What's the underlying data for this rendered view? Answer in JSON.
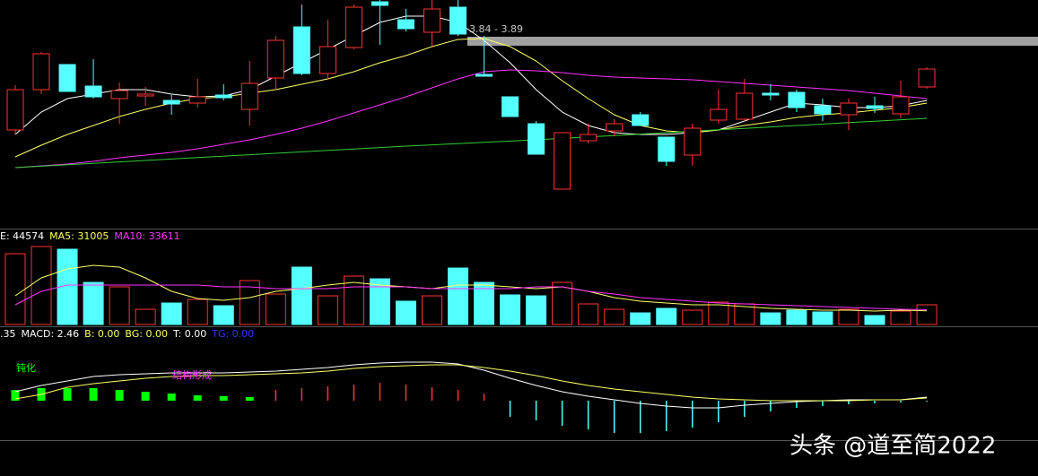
{
  "chart_data": [
    {
      "type": "candlestick",
      "ylim": [
        2.82,
        4.095
      ],
      "up_color": "#ff3232",
      "down_color": "#54ffff",
      "open": [
        3.37,
        3.595,
        3.735,
        3.615,
        3.545,
        3.56,
        3.535,
        3.52,
        3.565,
        3.485,
        3.66,
        3.945,
        3.685,
        3.83,
        4.085,
        3.985,
        3.915,
        4.055,
        3.68,
        3.555,
        3.405,
        3.04,
        3.31,
        3.365,
        3.455,
        3.33,
        3.23,
        3.425,
        3.43,
        3.575,
        3.58,
        3.505,
        3.455,
        3.505,
        3.46,
        3.61
      ],
      "high": [
        3.62,
        3.805,
        3.735,
        3.765,
        3.635,
        3.61,
        3.565,
        3.655,
        3.625,
        3.755,
        3.895,
        4.07,
        3.985,
        4.07,
        4.095,
        4.045,
        4.095,
        4.095,
        3.895,
        3.555,
        3.42,
        3.355,
        3.405,
        3.43,
        3.47,
        3.33,
        3.405,
        3.595,
        3.655,
        3.625,
        3.595,
        3.545,
        3.545,
        3.555,
        3.645,
        3.72
      ],
      "low": [
        3.345,
        3.57,
        3.585,
        3.545,
        3.405,
        3.505,
        3.455,
        3.495,
        3.535,
        3.395,
        3.595,
        3.675,
        3.655,
        3.82,
        3.845,
        3.92,
        3.835,
        3.895,
        3.67,
        3.445,
        3.235,
        3.04,
        3.295,
        3.335,
        3.395,
        3.17,
        3.17,
        3.405,
        3.42,
        3.535,
        3.47,
        3.42,
        3.37,
        3.465,
        3.435,
        3.6
      ],
      "close": [
        3.595,
        3.795,
        3.585,
        3.555,
        3.59,
        3.57,
        3.515,
        3.555,
        3.55,
        3.63,
        3.87,
        3.685,
        3.835,
        4.055,
        4.065,
        3.935,
        4.045,
        3.905,
        3.67,
        3.445,
        3.235,
        3.355,
        3.345,
        3.405,
        3.395,
        3.195,
        3.38,
        3.485,
        3.575,
        3.565,
        3.495,
        3.46,
        3.52,
        3.49,
        3.555,
        3.71
      ],
      "lines": [
        {
          "color": "#ffffff",
          "values": [
            3.345,
            3.47,
            3.545,
            3.57,
            3.595,
            3.595,
            3.57,
            3.555,
            3.56,
            3.595,
            3.67,
            3.745,
            3.82,
            3.895,
            3.97,
            4.005,
            4.005,
            3.97,
            3.87,
            3.745,
            3.595,
            3.47,
            3.395,
            3.355,
            3.345,
            3.345,
            3.355,
            3.37,
            3.42,
            3.47,
            3.52,
            3.51,
            3.495,
            3.495,
            3.505,
            3.535
          ]
        },
        {
          "color": "#ffff66",
          "values": [
            3.22,
            3.285,
            3.345,
            3.395,
            3.445,
            3.485,
            3.52,
            3.545,
            3.555,
            3.575,
            3.595,
            3.625,
            3.655,
            3.695,
            3.745,
            3.785,
            3.835,
            3.875,
            3.88,
            3.835,
            3.755,
            3.645,
            3.545,
            3.455,
            3.395,
            3.365,
            3.355,
            3.37,
            3.395,
            3.415,
            3.44,
            3.455,
            3.465,
            3.48,
            3.495,
            3.52
          ]
        },
        {
          "color": "#ff33ff",
          "values": [
            3.16,
            3.17,
            3.18,
            3.195,
            3.215,
            3.23,
            3.245,
            3.265,
            3.29,
            3.315,
            3.345,
            3.38,
            3.42,
            3.465,
            3.51,
            3.555,
            3.605,
            3.655,
            3.695,
            3.705,
            3.7,
            3.69,
            3.675,
            3.665,
            3.66,
            3.655,
            3.65,
            3.64,
            3.63,
            3.62,
            3.61,
            3.6,
            3.59,
            3.575,
            3.56,
            3.545
          ]
        },
        {
          "color": "#33cc33",
          "values": [
            3.16,
            3.168,
            3.176,
            3.184,
            3.192,
            3.2,
            3.208,
            3.216,
            3.224,
            3.232,
            3.24,
            3.248,
            3.256,
            3.264,
            3.272,
            3.28,
            3.287,
            3.294,
            3.301,
            3.308,
            3.315,
            3.323,
            3.331,
            3.339,
            3.347,
            3.355,
            3.363,
            3.371,
            3.379,
            3.387,
            3.395,
            3.403,
            3.411,
            3.419,
            3.427,
            3.435
          ]
        }
      ],
      "annotation": {
        "label": "3.84 - 3.89",
        "low": 3.84,
        "high": 3.89,
        "color": "#a0a0a0"
      }
    },
    {
      "type": "volume",
      "ylim": [
        0,
        214800
      ],
      "up_color": "#ff3232",
      "legend": [
        {
          "text": "E: 44574",
          "color": "#ffffff"
        },
        {
          "text": "MA5: 31005",
          "color": "#ffff66"
        },
        {
          "text": "MA10: 33611",
          "color": "#ff33ff"
        }
      ],
      "values": [
        160000,
        176300,
        170200,
        95200,
        85100,
        34400,
        48600,
        56700,
        42500,
        99300,
        68900,
        129700,
        64800,
        109400,
        103300,
        52700,
        64800,
        127600,
        95200,
        66900,
        64800,
        95200,
        46600,
        34400,
        26300,
        36500,
        32400,
        50700,
        46600,
        26300,
        32400,
        28400,
        34400,
        20300,
        30400,
        44574
      ],
      "colors": [
        "#ff3232",
        "#ff3232",
        "#54ffff",
        "#54ffff",
        "#ff3232",
        "#ff3232",
        "#54ffff",
        "#ff3232",
        "#54ffff",
        "#ff3232",
        "#ff3232",
        "#54ffff",
        "#ff3232",
        "#ff3232",
        "#54ffff",
        "#54ffff",
        "#ff3232",
        "#54ffff",
        "#54ffff",
        "#54ffff",
        "#54ffff",
        "#ff3232",
        "#ff3232",
        "#ff3232",
        "#54ffff",
        "#54ffff",
        "#ff3232",
        "#ff3232",
        "#ff3232",
        "#54ffff",
        "#54ffff",
        "#54ffff",
        "#ff3232",
        "#54ffff",
        "#ff3232",
        "#ff3232"
      ],
      "lines": [
        {
          "color": "#ffff66",
          "values": [
            64800,
            105400,
            125600,
            133700,
            129700,
            105400,
            75000,
            58800,
            54700,
            60800,
            75000,
            81000,
            89100,
            95200,
            89100,
            85100,
            81000,
            89100,
            89100,
            85100,
            81000,
            85100,
            75000,
            60800,
            52700,
            48600,
            44600,
            44600,
            40500,
            36500,
            34400,
            32400,
            32400,
            30400,
            32400,
            31005
          ]
        },
        {
          "color": "#ff33ff",
          "values": [
            44600,
            75000,
            89100,
            89100,
            89100,
            89100,
            89100,
            89100,
            85100,
            85100,
            81000,
            81000,
            81000,
            85100,
            85100,
            85100,
            81000,
            81000,
            81000,
            81000,
            85100,
            85100,
            75000,
            68900,
            60800,
            56700,
            52700,
            48600,
            46600,
            44600,
            42500,
            40500,
            38500,
            36500,
            34400,
            33611
          ]
        }
      ]
    },
    {
      "type": "macd",
      "ylim": [
        -0.45,
        0.82
      ],
      "wide_color": "#00ff00",
      "legend": [
        {
          "text": ".35",
          "color": "#ffffff"
        },
        {
          "text": "MACD: 2.46",
          "color": "#ffffff"
        },
        {
          "text": "B: 0.00",
          "color": "#ffff66"
        },
        {
          "text": "BG: 0.00",
          "color": "#ffff66"
        },
        {
          "text": "T: 0.00",
          "color": "#ffffff"
        },
        {
          "text": "TG: 0.00",
          "color": "#3333ff"
        }
      ],
      "values": [
        0.12,
        0.14,
        0.14,
        0.14,
        0.12,
        0.1,
        0.08,
        0.06,
        0.05,
        0.04,
        0.12,
        0.14,
        0.16,
        0.18,
        0.2,
        0.18,
        0.15,
        0.12,
        0.08,
        -0.18,
        -0.22,
        -0.28,
        -0.32,
        -0.36,
        -0.36,
        -0.34,
        -0.3,
        -0.24,
        -0.18,
        -0.12,
        -0.08,
        -0.06,
        -0.04,
        -0.03,
        -0.02,
        -0.01
      ],
      "colors": [
        "#00ff00",
        "#00ff00",
        "#00ff00",
        "#00ff00",
        "#00ff00",
        "#00ff00",
        "#00ff00",
        "#00ff00",
        "#00ff00",
        "#00ff00",
        "#ff3232",
        "#ff3232",
        "#ff3232",
        "#ff3232",
        "#ff3232",
        "#ff3232",
        "#ff3232",
        "#ff3232",
        "#ff3232",
        "#54ffff",
        "#54ffff",
        "#54ffff",
        "#54ffff",
        "#54ffff",
        "#54ffff",
        "#54ffff",
        "#54ffff",
        "#54ffff",
        "#54ffff",
        "#54ffff",
        "#54ffff",
        "#54ffff",
        "#54ffff",
        "#54ffff",
        "#54ffff",
        "#54ffff"
      ],
      "lines": [
        {
          "color": "#ffffff",
          "values": [
            0.1,
            0.17,
            0.22,
            0.27,
            0.29,
            0.3,
            0.31,
            0.31,
            0.31,
            0.32,
            0.33,
            0.35,
            0.37,
            0.4,
            0.42,
            0.43,
            0.43,
            0.41,
            0.34,
            0.25,
            0.17,
            0.1,
            0.05,
            0.01,
            -0.03,
            -0.06,
            -0.08,
            -0.08,
            -0.05,
            -0.03,
            -0.01,
            0,
            0.01,
            0.01,
            0.01,
            0.04
          ]
        },
        {
          "color": "#ffff66",
          "values": [
            0.02,
            0.07,
            0.15,
            0.19,
            0.22,
            0.25,
            0.27,
            0.28,
            0.28,
            0.29,
            0.3,
            0.31,
            0.33,
            0.36,
            0.38,
            0.39,
            0.4,
            0.4,
            0.37,
            0.33,
            0.28,
            0.22,
            0.17,
            0.13,
            0.1,
            0.07,
            0.04,
            0.02,
            0.01,
            0,
            0,
            0,
            0,
            0.01,
            0.01,
            0.03
          ]
        }
      ],
      "annotations": [
        {
          "text": "钝化",
          "color": "#00ff00"
        },
        {
          "text": "结构形成",
          "color": "#ff33ff"
        }
      ]
    }
  ],
  "watermark": "头条 @道至简2022"
}
